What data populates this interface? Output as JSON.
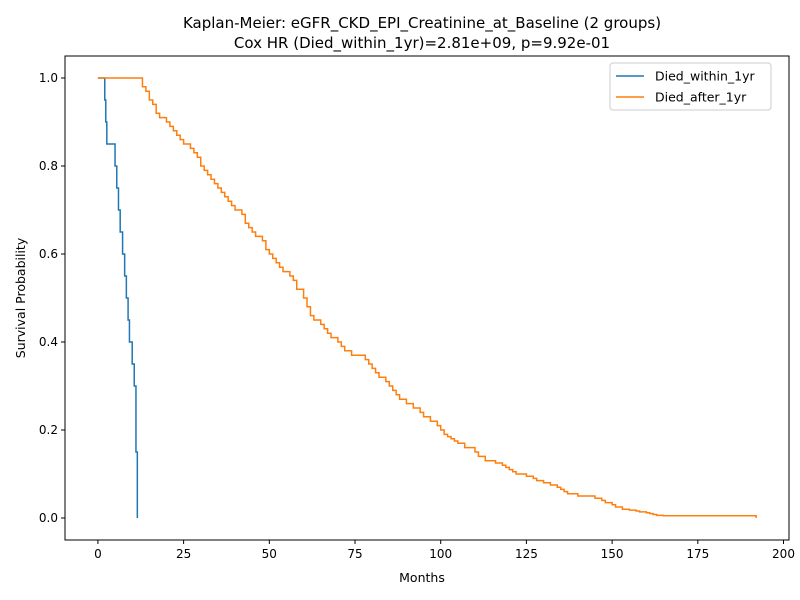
{
  "chart_data": {
    "type": "line",
    "title": "Kaplan-Meier: eGFR_CKD_EPI_Creatinine_at_Baseline (2 groups)",
    "subtitle": "Cox HR (Died_within_1yr)=2.81e+09, p=9.92e-01",
    "xlabel": "Months",
    "ylabel": "Survival Probability",
    "xlim": [
      -9.6,
      201.6
    ],
    "ylim": [
      -0.05,
      1.05
    ],
    "xticks": [
      0,
      25,
      50,
      75,
      100,
      125,
      150,
      175,
      200
    ],
    "yticks": [
      0.0,
      0.2,
      0.4,
      0.6,
      0.8,
      1.0
    ],
    "xtick_labels": [
      "0",
      "25",
      "50",
      "75",
      "100",
      "125",
      "150",
      "175",
      "200"
    ],
    "ytick_labels": [
      "0.0",
      "0.2",
      "0.4",
      "0.6",
      "0.8",
      "1.0"
    ],
    "grid": false,
    "legend_position": "top-right",
    "series": [
      {
        "name": "Died_within_1yr",
        "color": "#1f77b4",
        "step": true,
        "x": [
          0,
          2,
          2.3,
          2.6,
          3.3,
          5,
          5.5,
          6,
          6.5,
          7.2,
          7.8,
          8.3,
          8.8,
          9.2,
          9.5,
          10,
          10.6,
          11.1,
          11.5
        ],
        "y": [
          1.0,
          0.95,
          0.9,
          0.85,
          0.85,
          0.8,
          0.75,
          0.7,
          0.65,
          0.6,
          0.55,
          0.5,
          0.45,
          0.4,
          0.4,
          0.35,
          0.3,
          0.15,
          0.0
        ]
      },
      {
        "name": "Died_after_1yr",
        "color": "#ff7f0e",
        "step": true,
        "x": [
          0,
          12,
          13,
          14,
          15,
          16,
          17,
          18,
          20,
          21,
          22,
          23,
          24,
          25,
          27,
          28,
          29,
          30,
          31,
          32,
          33,
          34,
          35,
          36,
          37,
          38,
          39,
          40,
          42,
          43,
          44,
          45,
          46,
          48,
          49,
          50,
          51,
          52,
          53,
          54,
          56,
          57,
          58,
          60,
          61,
          62,
          63,
          65,
          66,
          67,
          68,
          70,
          71,
          72,
          74,
          78,
          79,
          80,
          81,
          82,
          84,
          85,
          86,
          87,
          88,
          90,
          92,
          94,
          95,
          97,
          99,
          100,
          101,
          102,
          103,
          104,
          105,
          107,
          110,
          111,
          113,
          116,
          118,
          119,
          120,
          121,
          122,
          125,
          127,
          128,
          130,
          132,
          134,
          135,
          136,
          137,
          140,
          145,
          147,
          148,
          150,
          151,
          153,
          155,
          157,
          158,
          160,
          161,
          162,
          163,
          165,
          170,
          172,
          173,
          175,
          180,
          185,
          190,
          192
        ],
        "y": [
          1.0,
          1.0,
          0.98,
          0.97,
          0.95,
          0.94,
          0.92,
          0.91,
          0.9,
          0.89,
          0.88,
          0.87,
          0.86,
          0.85,
          0.84,
          0.83,
          0.82,
          0.8,
          0.79,
          0.78,
          0.77,
          0.76,
          0.75,
          0.74,
          0.73,
          0.72,
          0.71,
          0.7,
          0.69,
          0.67,
          0.66,
          0.65,
          0.64,
          0.63,
          0.61,
          0.6,
          0.59,
          0.58,
          0.57,
          0.56,
          0.55,
          0.54,
          0.52,
          0.5,
          0.48,
          0.46,
          0.45,
          0.44,
          0.43,
          0.42,
          0.41,
          0.4,
          0.39,
          0.38,
          0.37,
          0.36,
          0.35,
          0.34,
          0.33,
          0.32,
          0.31,
          0.3,
          0.29,
          0.28,
          0.27,
          0.26,
          0.25,
          0.24,
          0.23,
          0.22,
          0.21,
          0.2,
          0.19,
          0.185,
          0.18,
          0.175,
          0.17,
          0.16,
          0.15,
          0.14,
          0.13,
          0.125,
          0.12,
          0.115,
          0.11,
          0.105,
          0.1,
          0.095,
          0.09,
          0.085,
          0.08,
          0.075,
          0.07,
          0.065,
          0.06,
          0.055,
          0.05,
          0.045,
          0.04,
          0.035,
          0.03,
          0.025,
          0.02,
          0.018,
          0.016,
          0.014,
          0.012,
          0.01,
          0.008,
          0.006,
          0.005,
          0.005,
          0.005,
          0.005,
          0.005,
          0.005,
          0.005,
          0.005,
          0.0
        ]
      }
    ]
  }
}
